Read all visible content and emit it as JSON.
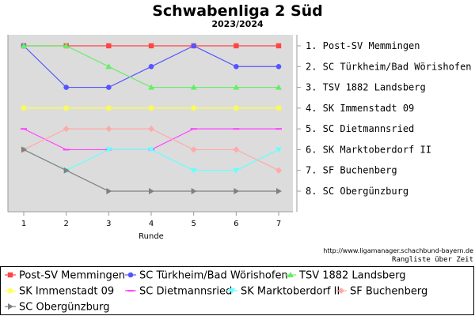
{
  "chart_data": {
    "type": "line",
    "title": "Schwabenliga 2 Süd",
    "subtitle": "2023/2024",
    "xlabel": "Runde",
    "ylabel": "",
    "x": [
      1,
      2,
      3,
      4,
      5,
      6,
      7
    ],
    "ylim": [
      1,
      8
    ],
    "y_inverted": true,
    "grid": false,
    "legend_position": "bottom",
    "final_ranking": [
      "1. Post-SV Memmingen",
      "2. SC Türkheim/Bad Wörishofen",
      "3. TSV 1882 Landsberg",
      "4. SK Immenstadt 09",
      "5. SC Dietmannsried",
      "6. SK Marktoberdorf II",
      "7. SF Buchenberg",
      "8. SC Obergünzburg"
    ],
    "source_url": "http://www.ligamanager.schachbund-bayern.de",
    "caption": "Rangliste über Zeit",
    "series": [
      {
        "name": "Post-SV Memmingen",
        "values": [
          1,
          1,
          1,
          1,
          1,
          1,
          1
        ],
        "color": "#ff4444",
        "marker": "square"
      },
      {
        "name": "SC Türkheim/Bad Wörishofen",
        "values": [
          1,
          3,
          3,
          2,
          1,
          2,
          2
        ],
        "color": "#5555ff",
        "marker": "circle"
      },
      {
        "name": "TSV 1882 Landsberg",
        "values": [
          1,
          1,
          2,
          3,
          3,
          3,
          3
        ],
        "color": "#66ee66",
        "marker": "triangle-up"
      },
      {
        "name": "SK Immenstadt 09",
        "values": [
          4,
          4,
          4,
          4,
          4,
          4,
          4
        ],
        "color": "#ffff44",
        "marker": "star"
      },
      {
        "name": "SC Dietmannsried",
        "values": [
          5,
          6,
          6,
          6,
          5,
          5,
          5
        ],
        "color": "#ff44ff",
        "marker": "dash"
      },
      {
        "name": "SK Marktoberdorf II",
        "values": [
          6,
          7,
          6,
          6,
          7,
          7,
          6
        ],
        "color": "#66ffff",
        "marker": "triangle-down"
      },
      {
        "name": "SF Buchenberg",
        "values": [
          6,
          5,
          5,
          5,
          6,
          6,
          7
        ],
        "color": "#ffaaaa",
        "marker": "diamond"
      },
      {
        "name": "SC Obergünzburg",
        "values": [
          6,
          7,
          8,
          8,
          8,
          8,
          8
        ],
        "color": "#808080",
        "marker": "triangle-right"
      }
    ]
  }
}
